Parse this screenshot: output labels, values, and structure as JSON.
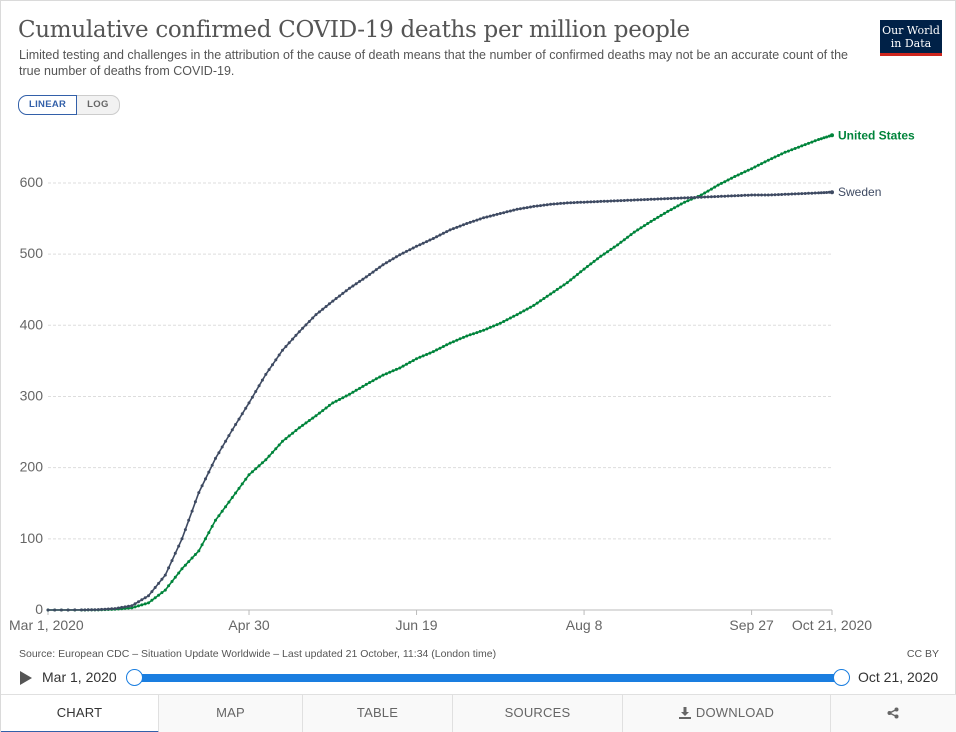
{
  "header": {
    "title": "Cumulative confirmed COVID-19 deaths per million people",
    "subtitle": "Limited testing and challenges in the attribution of the cause of death means that the number of confirmed deaths may not be an accurate count of the true number of deaths from COVID-19.",
    "logo_line1": "Our World",
    "logo_line2": "in Data"
  },
  "scale_toggle": {
    "linear": "LINEAR",
    "log": "LOG",
    "selected": "LINEAR"
  },
  "colors": {
    "united_states": "#00843b",
    "sweden": "#3e4a62",
    "accent": "#1a7ee0",
    "grid": "#dddddd"
  },
  "chart_data": {
    "type": "line",
    "x_axis": {
      "type": "date",
      "range": [
        "2020-03-01",
        "2020-10-21"
      ],
      "ticks": [
        {
          "date": "2020-03-01",
          "label": "Mar 1, 2020"
        },
        {
          "date": "2020-04-30",
          "label": "Apr 30"
        },
        {
          "date": "2020-06-19",
          "label": "Jun 19"
        },
        {
          "date": "2020-08-08",
          "label": "Aug 8"
        },
        {
          "date": "2020-09-27",
          "label": "Sep 27"
        },
        {
          "date": "2020-10-21",
          "label": "Oct 21, 2020"
        }
      ]
    },
    "y_axis": {
      "range": [
        0,
        680
      ],
      "ticks": [
        0,
        100,
        200,
        300,
        400,
        500,
        600
      ]
    },
    "grid": true,
    "legend": "line-end labels",
    "series": [
      {
        "name": "United States",
        "color": "#00843b",
        "points": [
          [
            "2020-03-01",
            0
          ],
          [
            "2020-03-11",
            0
          ],
          [
            "2020-03-16",
            0.2
          ],
          [
            "2020-03-21",
            1
          ],
          [
            "2020-03-26",
            3
          ],
          [
            "2020-03-31",
            10
          ],
          [
            "2020-04-05",
            28
          ],
          [
            "2020-04-10",
            58
          ],
          [
            "2020-04-15",
            83
          ],
          [
            "2020-04-20",
            126
          ],
          [
            "2020-04-25",
            158
          ],
          [
            "2020-04-30",
            190
          ],
          [
            "2020-05-05",
            211
          ],
          [
            "2020-05-10",
            237
          ],
          [
            "2020-05-15",
            256
          ],
          [
            "2020-05-20",
            273
          ],
          [
            "2020-05-25",
            291
          ],
          [
            "2020-05-30",
            303
          ],
          [
            "2020-06-04",
            317
          ],
          [
            "2020-06-09",
            330
          ],
          [
            "2020-06-14",
            340
          ],
          [
            "2020-06-19",
            353
          ],
          [
            "2020-06-24",
            363
          ],
          [
            "2020-06-29",
            375
          ],
          [
            "2020-07-04",
            385
          ],
          [
            "2020-07-09",
            393
          ],
          [
            "2020-07-14",
            403
          ],
          [
            "2020-07-19",
            415
          ],
          [
            "2020-07-24",
            428
          ],
          [
            "2020-07-29",
            444
          ],
          [
            "2020-08-03",
            460
          ],
          [
            "2020-08-08",
            479
          ],
          [
            "2020-08-13",
            497
          ],
          [
            "2020-08-18",
            513
          ],
          [
            "2020-08-23",
            531
          ],
          [
            "2020-08-28",
            546
          ],
          [
            "2020-09-02",
            560
          ],
          [
            "2020-09-07",
            573
          ],
          [
            "2020-09-12",
            583
          ],
          [
            "2020-09-17",
            597
          ],
          [
            "2020-09-22",
            609
          ],
          [
            "2020-09-27",
            620
          ],
          [
            "2020-10-02",
            632
          ],
          [
            "2020-10-07",
            643
          ],
          [
            "2020-10-12",
            652
          ],
          [
            "2020-10-17",
            661
          ],
          [
            "2020-10-21",
            667
          ]
        ]
      },
      {
        "name": "Sweden",
        "color": "#3e4a62",
        "points": [
          [
            "2020-03-01",
            0
          ],
          [
            "2020-03-11",
            0.1
          ],
          [
            "2020-03-16",
            0.5
          ],
          [
            "2020-03-21",
            2
          ],
          [
            "2020-03-26",
            6
          ],
          [
            "2020-03-31",
            20
          ],
          [
            "2020-04-05",
            49
          ],
          [
            "2020-04-10",
            100
          ],
          [
            "2020-04-15",
            165
          ],
          [
            "2020-04-20",
            213
          ],
          [
            "2020-04-25",
            253
          ],
          [
            "2020-04-30",
            291
          ],
          [
            "2020-05-05",
            331
          ],
          [
            "2020-05-10",
            365
          ],
          [
            "2020-05-15",
            391
          ],
          [
            "2020-05-20",
            415
          ],
          [
            "2020-05-25",
            434
          ],
          [
            "2020-05-30",
            452
          ],
          [
            "2020-06-04",
            468
          ],
          [
            "2020-06-09",
            485
          ],
          [
            "2020-06-14",
            499
          ],
          [
            "2020-06-19",
            511
          ],
          [
            "2020-06-24",
            522
          ],
          [
            "2020-06-29",
            534
          ],
          [
            "2020-07-04",
            543
          ],
          [
            "2020-07-09",
            551
          ],
          [
            "2020-07-14",
            557
          ],
          [
            "2020-07-19",
            563
          ],
          [
            "2020-07-24",
            567
          ],
          [
            "2020-07-29",
            570
          ],
          [
            "2020-08-03",
            572
          ],
          [
            "2020-08-08",
            573
          ],
          [
            "2020-08-13",
            574
          ],
          [
            "2020-08-18",
            575
          ],
          [
            "2020-08-23",
            576
          ],
          [
            "2020-08-28",
            577
          ],
          [
            "2020-09-02",
            578
          ],
          [
            "2020-09-07",
            579
          ],
          [
            "2020-09-12",
            580
          ],
          [
            "2020-09-17",
            581
          ],
          [
            "2020-09-22",
            582
          ],
          [
            "2020-09-27",
            583
          ],
          [
            "2020-10-02",
            583
          ],
          [
            "2020-10-07",
            584
          ],
          [
            "2020-10-12",
            585
          ],
          [
            "2020-10-17",
            586
          ],
          [
            "2020-10-21",
            587
          ]
        ]
      }
    ]
  },
  "footer": {
    "source": "Source: European CDC – Situation Update Worldwide – Last updated 21 October, 11:34 (London time)",
    "license": "CC BY"
  },
  "timeline": {
    "start_label": "Mar 1, 2020",
    "end_label": "Oct 21, 2020"
  },
  "tabs": [
    "CHART",
    "MAP",
    "TABLE",
    "SOURCES",
    "DOWNLOAD"
  ],
  "icons": {
    "play": "play-icon",
    "download": "download-icon",
    "share": "share-icon"
  }
}
